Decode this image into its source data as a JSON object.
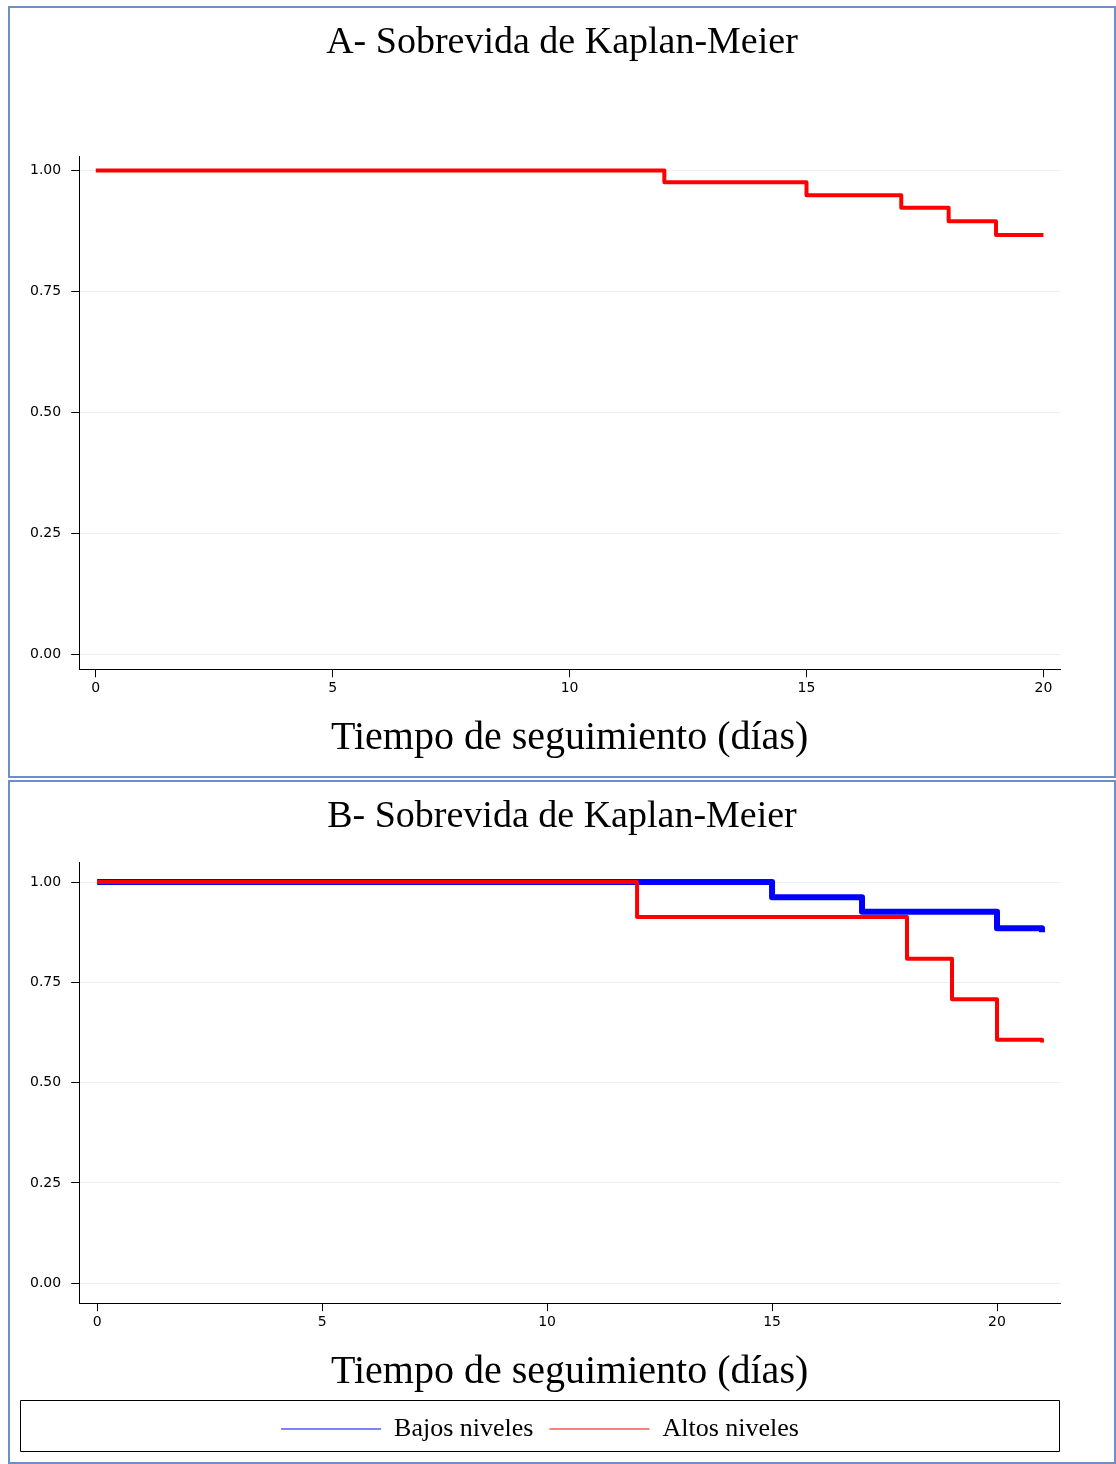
{
  "chart_data": [
    {
      "type": "step",
      "title": "A- Sobrevida de Kaplan-Meier",
      "xlabel": "Tiempo de seguimiento (días)",
      "xlim": [
        -0.35,
        20.35
      ],
      "xticks": [
        0,
        5,
        10,
        15,
        20
      ],
      "ylim": [
        -0.03,
        1.03
      ],
      "yticks": [
        {
          "value": 0,
          "label": "0.00"
        },
        {
          "value": 0.25,
          "label": "0.25"
        },
        {
          "value": 0.5,
          "label": "0.50"
        },
        {
          "value": 0.75,
          "label": "0.75"
        },
        {
          "value": 1,
          "label": "1.00"
        }
      ],
      "grid": "y",
      "legend": false,
      "marker": "none",
      "line_style": "solid",
      "series": [
        {
          "color": "#ff0000",
          "x": [
            0,
            12,
            15,
            17,
            18,
            19,
            20
          ],
          "values": [
            1,
            0.976,
            0.949,
            0.923,
            0.895,
            0.867,
            0.867
          ]
        }
      ]
    },
    {
      "type": "step",
      "title": "B- Sobrevida de Kaplan-Meier",
      "xlabel": "Tiempo de seguimiento (días)",
      "xlim": [
        -0.4,
        21.4
      ],
      "xticks": [
        0,
        5,
        10,
        15,
        20
      ],
      "ylim": [
        -0.05,
        1.05
      ],
      "yticks": [
        {
          "value": 0,
          "label": "0.00"
        },
        {
          "value": 0.25,
          "label": "0.25"
        },
        {
          "value": 0.5,
          "label": "0.50"
        },
        {
          "value": 0.75,
          "label": "0.75"
        },
        {
          "value": 1,
          "label": "1.00"
        }
      ],
      "grid": "y",
      "legend": "bottom",
      "marker": "none",
      "line_style": "solid",
      "series": [
        {
          "name": "Bajos niveles",
          "color": "#0000ff",
          "x": [
            0,
            15,
            17,
            20,
            21
          ],
          "values": [
            1,
            0.962,
            0.926,
            0.885,
            0.875
          ]
        },
        {
          "name": "Altos niveles",
          "color": "#ff0000",
          "x": [
            0,
            12,
            18,
            19,
            20,
            21
          ],
          "values": [
            1,
            0.913,
            0.809,
            0.708,
            0.607,
            0.6
          ]
        }
      ]
    }
  ]
}
